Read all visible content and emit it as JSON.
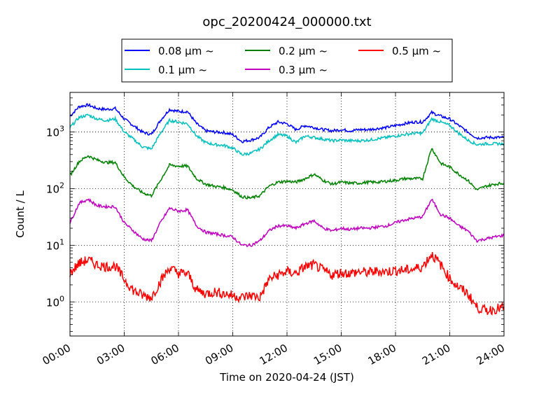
{
  "chart_data": {
    "type": "line",
    "title": "opc_20200424_000000.txt",
    "xlabel": "Time on 2020-04-24 (JST)",
    "ylabel": "Count / L",
    "y_scale": "log",
    "xlim": [
      "00:00",
      "24:00"
    ],
    "ylim": [
      0.25,
      5000
    ],
    "grid": true,
    "legend_position": "top-center",
    "x_ticks": [
      "00:00",
      "03:00",
      "06:00",
      "09:00",
      "12:00",
      "15:00",
      "18:00",
      "21:00",
      "24:00"
    ],
    "y_ticks": [
      {
        "value": 1,
        "base": "10",
        "exp": "0"
      },
      {
        "value": 10,
        "base": "10",
        "exp": "1"
      },
      {
        "value": 100,
        "base": "10",
        "exp": "2"
      },
      {
        "value": 1000,
        "base": "10",
        "exp": "3"
      }
    ],
    "x": [
      "00:00",
      "00:30",
      "01:00",
      "01:30",
      "02:00",
      "02:30",
      "03:00",
      "03:30",
      "04:00",
      "04:30",
      "05:00",
      "05:30",
      "06:00",
      "06:30",
      "07:00",
      "07:30",
      "08:00",
      "08:30",
      "09:00",
      "09:30",
      "10:00",
      "10:30",
      "11:00",
      "11:30",
      "12:00",
      "12:30",
      "13:00",
      "13:30",
      "14:00",
      "14:30",
      "15:00",
      "15:30",
      "16:00",
      "16:30",
      "17:00",
      "17:30",
      "18:00",
      "18:30",
      "19:00",
      "19:30",
      "20:00",
      "20:30",
      "21:00",
      "21:30",
      "22:00",
      "22:30",
      "23:00",
      "23:30",
      "24:00"
    ],
    "series": [
      {
        "name": "0.08 μm ~",
        "color": "#0000ff",
        "values": [
          1900,
          2800,
          3000,
          2600,
          2500,
          2600,
          1700,
          1300,
          1000,
          900,
          1600,
          2500,
          2300,
          2300,
          1400,
          1050,
          1000,
          980,
          900,
          680,
          720,
          800,
          1200,
          1500,
          1400,
          1100,
          1300,
          1200,
          1100,
          1050,
          1100,
          1050,
          1100,
          1100,
          1150,
          1200,
          1300,
          1400,
          1500,
          1500,
          2200,
          1900,
          1700,
          1300,
          1000,
          780,
          800,
          800,
          800
        ]
      },
      {
        "name": "0.1 μm ~",
        "color": "#00bfbf",
        "values": [
          1200,
          1800,
          2000,
          1700,
          1600,
          1700,
          1000,
          750,
          550,
          500,
          950,
          1600,
          1500,
          1400,
          850,
          650,
          600,
          580,
          520,
          400,
          420,
          500,
          700,
          900,
          850,
          650,
          850,
          800,
          750,
          700,
          720,
          700,
          700,
          720,
          760,
          800,
          850,
          900,
          950,
          950,
          1700,
          1500,
          1300,
          950,
          720,
          600,
          620,
          620,
          620
        ]
      },
      {
        "name": "0.2 μm ~",
        "color": "#008000",
        "values": [
          170,
          300,
          380,
          320,
          290,
          290,
          160,
          110,
          85,
          75,
          140,
          260,
          250,
          250,
          150,
          120,
          110,
          105,
          95,
          72,
          68,
          75,
          110,
          130,
          135,
          130,
          150,
          180,
          140,
          120,
          130,
          125,
          125,
          130,
          130,
          135,
          140,
          150,
          150,
          150,
          520,
          280,
          240,
          180,
          140,
          95,
          110,
          120,
          125
        ]
      },
      {
        "name": "0.3 μm ~",
        "color": "#bf00bf",
        "values": [
          25,
          55,
          65,
          50,
          48,
          48,
          25,
          18,
          13,
          12,
          25,
          45,
          40,
          42,
          22,
          17,
          16,
          15,
          14,
          10,
          10,
          12,
          18,
          22,
          22,
          20,
          24,
          27,
          20,
          18,
          20,
          19,
          20,
          20,
          21,
          22,
          25,
          28,
          30,
          32,
          65,
          35,
          30,
          22,
          18,
          12,
          13,
          14,
          15
        ]
      },
      {
        "name": "0.5 μm ~",
        "color": "#ff0000",
        "values": [
          3.2,
          4.8,
          5.5,
          4.5,
          4.2,
          4.3,
          2.5,
          1.6,
          1.3,
          1.2,
          2.3,
          4.0,
          3.2,
          3.2,
          1.6,
          1.4,
          1.5,
          1.4,
          1.3,
          1.2,
          1.3,
          1.2,
          2.5,
          3.0,
          3.4,
          3.2,
          4.2,
          4.5,
          3.6,
          3.0,
          3.3,
          3.2,
          3.4,
          3.3,
          3.5,
          3.4,
          3.6,
          3.6,
          3.8,
          4.2,
          7.0,
          4.5,
          2.6,
          1.8,
          1.4,
          0.8,
          0.7,
          0.75,
          0.8
        ]
      }
    ]
  }
}
